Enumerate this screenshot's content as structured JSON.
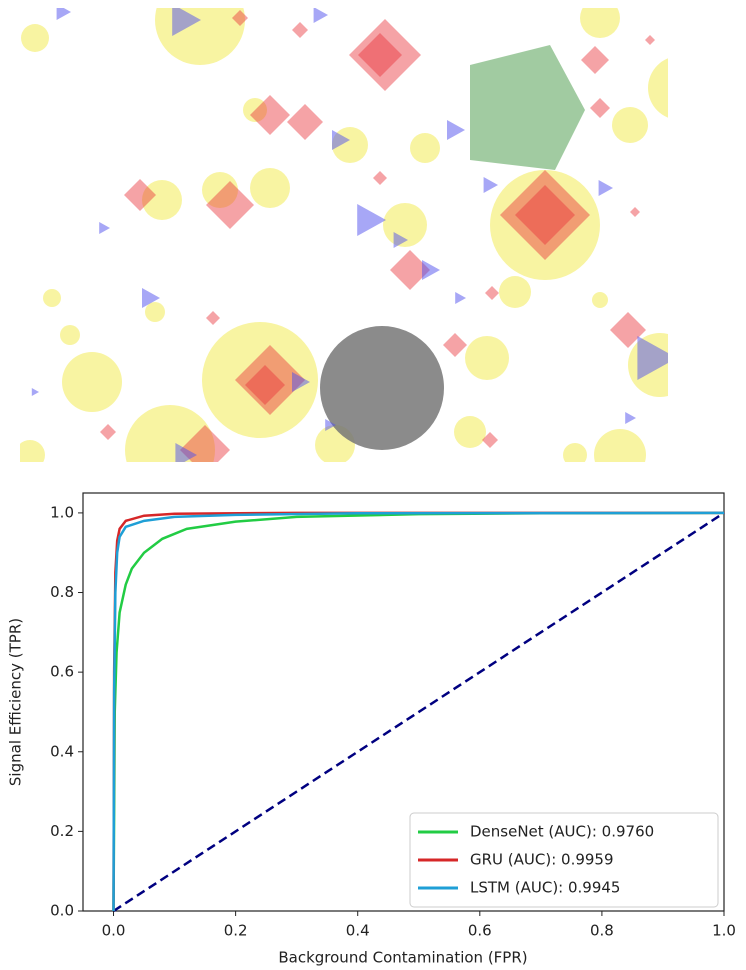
{
  "chart_data": {
    "type": "line",
    "xlabel": "Background Contamination (FPR)",
    "ylabel": "Signal Efficiency (TPR)",
    "xlim": [
      -0.05,
      1.0
    ],
    "ylim": [
      0,
      1.05
    ],
    "xticks": [
      {
        "value": 0,
        "label": "0.0"
      },
      0.2,
      0.4,
      0.6,
      0.8,
      {
        "value": 1,
        "label": "1.0"
      }
    ],
    "yticks": [
      {
        "value": 0,
        "label": "0.0"
      },
      0.2,
      0.4,
      0.6,
      0.8,
      {
        "value": 1,
        "label": "1.0"
      }
    ],
    "legend": "lower right",
    "series": [
      {
        "name": "DenseNet (AUC): 0.9760",
        "color": "#22cc44",
        "x": [
          0,
          0.002,
          0.005,
          0.01,
          0.02,
          0.03,
          0.05,
          0.08,
          0.12,
          0.2,
          0.3,
          0.5,
          0.7,
          1
        ],
        "values": [
          0,
          0.5,
          0.65,
          0.75,
          0.82,
          0.86,
          0.9,
          0.935,
          0.96,
          0.978,
          0.99,
          0.997,
          0.999,
          1
        ]
      },
      {
        "name": "GRU (AUC): 0.9959",
        "color": "#d62728",
        "x": [
          0,
          0.001,
          0.003,
          0.006,
          0.01,
          0.02,
          0.05,
          0.1,
          0.3,
          1
        ],
        "values": [
          0,
          0.6,
          0.85,
          0.93,
          0.96,
          0.98,
          0.993,
          0.998,
          1,
          1
        ]
      },
      {
        "name": "LSTM (AUC): 0.9945",
        "color": "#1f9fd6",
        "x": [
          0,
          0.001,
          0.003,
          0.006,
          0.01,
          0.02,
          0.05,
          0.1,
          0.2,
          0.4,
          1
        ],
        "values": [
          0,
          0.55,
          0.8,
          0.9,
          0.94,
          0.965,
          0.98,
          0.99,
          0.995,
          0.999,
          1
        ]
      }
    ],
    "reference_line": {
      "x": [
        0,
        1
      ],
      "values": [
        0,
        1
      ],
      "color": "#000080"
    }
  }
}
